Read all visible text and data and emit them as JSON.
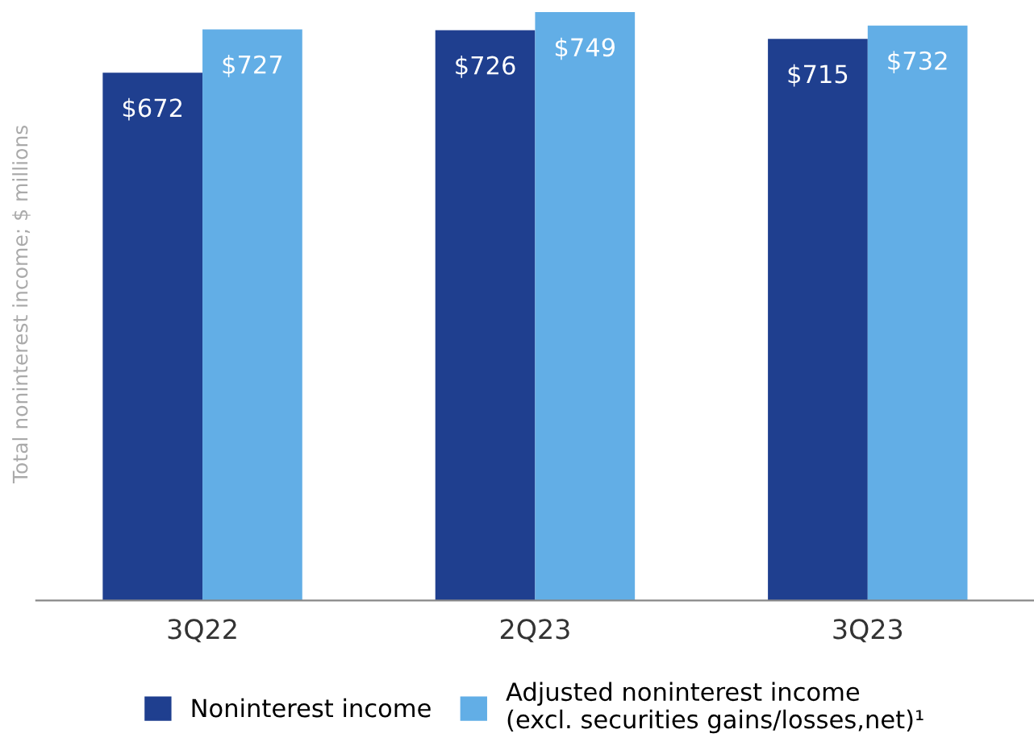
{
  "chart_data": {
    "type": "bar",
    "ylabel": "Total noninterest income; $ millions",
    "categories": [
      "3Q22",
      "2Q23",
      "3Q23"
    ],
    "series": [
      {
        "name": "Noninterest income",
        "color": "#1f3f8f",
        "values": [
          672,
          726,
          715
        ],
        "value_labels": [
          "$672",
          "$726",
          "$715"
        ]
      },
      {
        "name": "Adjusted noninterest income\n(excl. securities gains/losses,net)¹",
        "color": "#62aee6",
        "values": [
          727,
          749,
          732
        ],
        "value_labels": [
          "$727",
          "$749",
          "$732"
        ]
      }
    ],
    "ylim": [
      0,
      755
    ],
    "tick_labels": "x",
    "grid": false,
    "legend": "bottom"
  }
}
